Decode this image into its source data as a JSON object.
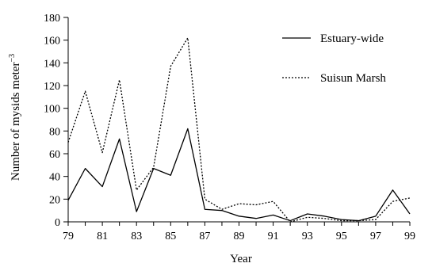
{
  "chart_data": {
    "type": "line",
    "xlabel": "Year",
    "ylabel": "Number of mysids meter",
    "ylabel_sup": "−3",
    "x": [
      79,
      80,
      81,
      82,
      83,
      84,
      85,
      86,
      87,
      88,
      89,
      90,
      91,
      92,
      93,
      94,
      95,
      96,
      97,
      98,
      99
    ],
    "xtick_labels": [
      "79",
      "81",
      "83",
      "85",
      "87",
      "89",
      "91",
      "93",
      "95",
      "97",
      "99"
    ],
    "xlim": [
      79,
      99
    ],
    "ylim": [
      0,
      180
    ],
    "yticks": [
      0,
      20,
      40,
      60,
      80,
      100,
      120,
      140,
      160,
      180
    ],
    "legend_position": "top-right",
    "grid": false,
    "series": [
      {
        "name": "Estuary-wide",
        "style": "solid",
        "color": "#000000",
        "values": [
          19,
          47,
          31,
          73,
          9,
          47,
          41,
          82,
          11,
          10,
          5,
          3,
          6,
          1,
          7,
          5,
          2,
          1,
          5,
          28,
          7
        ]
      },
      {
        "name": "Suisun Marsh",
        "style": "dotted",
        "color": "#000000",
        "values": [
          70,
          115,
          61,
          125,
          28,
          48,
          137,
          162,
          20,
          11,
          16,
          15,
          18,
          0,
          4,
          3,
          1,
          1,
          2,
          18,
          21
        ]
      }
    ]
  }
}
